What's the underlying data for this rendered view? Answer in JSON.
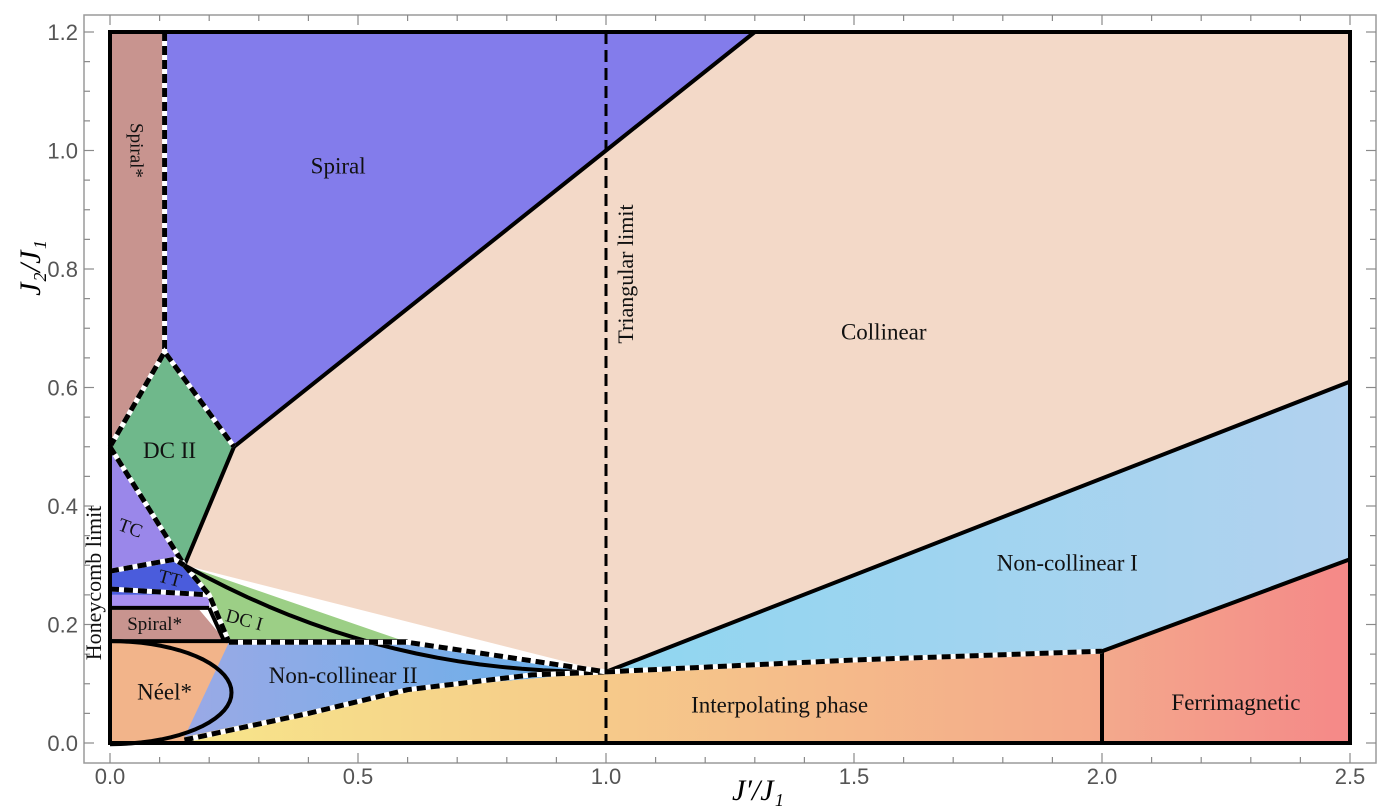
{
  "chart_data": {
    "type": "phase-diagram",
    "title": "",
    "xlabel": "J′/J₁",
    "ylabel": "J₂/J₁",
    "xlim": [
      0,
      2.5
    ],
    "ylim": [
      0,
      1.2
    ],
    "x_ticks": [
      "0.0",
      "0.5",
      "1.0",
      "1.5",
      "2.0",
      "2.5"
    ],
    "y_ticks": [
      "0.0",
      "0.2",
      "0.4",
      "0.6",
      "0.8",
      "1.0",
      "1.2"
    ],
    "limit_lines": [
      {
        "label": "Triangular limit",
        "x": 1.0
      },
      {
        "label": "Honeycomb limit",
        "x": 0.0
      }
    ],
    "regions": [
      {
        "name": "Spiral*",
        "color": "#c8948f",
        "polygon": [
          [
            0,
            1.2
          ],
          [
            0.11,
            1.2
          ],
          [
            0.11,
            0.66
          ],
          [
            0,
            0.5
          ]
        ]
      },
      {
        "name": "Spiral",
        "color": "#837ceb",
        "polygon": [
          [
            0.11,
            1.2
          ],
          [
            1.3,
            1.2
          ],
          [
            1.0,
            1.0
          ],
          [
            0.25,
            0.5
          ],
          [
            0.11,
            0.66
          ]
        ]
      },
      {
        "name": "Collinear",
        "color": "#f3d9c8",
        "polygon": [
          [
            1.3,
            1.2
          ],
          [
            2.5,
            1.2
          ],
          [
            2.5,
            0.61
          ],
          [
            1.0,
            0.12
          ],
          [
            0.15,
            0.3
          ],
          [
            0.25,
            0.5
          ],
          [
            1.0,
            1.0
          ]
        ]
      },
      {
        "name": "DC II",
        "color": "#6fb88b",
        "polygon": [
          [
            0,
            0.5
          ],
          [
            0.11,
            0.66
          ],
          [
            0.25,
            0.5
          ],
          [
            0.15,
            0.3
          ]
        ]
      },
      {
        "name": "TC",
        "color": "#9a87ea",
        "polygon": [
          [
            0,
            0.5
          ],
          [
            0.15,
            0.3
          ],
          [
            0.13,
            0.31
          ],
          [
            0,
            0.29
          ]
        ]
      },
      {
        "name": "TT",
        "color": "#4a5cdc",
        "polygon": [
          [
            0,
            0.29
          ],
          [
            0.13,
            0.31
          ],
          [
            0.15,
            0.3
          ],
          [
            0.2,
            0.25
          ],
          [
            0,
            0.25
          ]
        ]
      },
      {
        "name": "",
        "color": "#a78ff0",
        "polygon": [
          [
            0,
            0.25
          ],
          [
            0.2,
            0.25
          ],
          [
            0.2,
            0.23
          ],
          [
            0,
            0.23
          ]
        ]
      },
      {
        "name": "Spiral*",
        "color": "#c8948f",
        "polygon": [
          [
            0,
            0.225
          ],
          [
            0.18,
            0.225
          ],
          [
            0.23,
            0.175
          ],
          [
            0,
            0.175
          ]
        ]
      },
      {
        "name": "DC I",
        "color": "#9ccf86",
        "polygon": [
          [
            0.15,
            0.3
          ],
          [
            0.6,
            0.17
          ],
          [
            0.24,
            0.17
          ],
          [
            0.2,
            0.25
          ]
        ]
      },
      {
        "name": "Néel*",
        "color": "#f2b48a",
        "polygon": [
          [
            0,
            0
          ],
          [
            0,
            0.17
          ],
          [
            0.24,
            0.17
          ],
          [
            0.24,
            0
          ]
        ]
      },
      {
        "name": "Non-collinear II",
        "color": "#65aeea",
        "polygon": [
          [
            0.24,
            0.17
          ],
          [
            0.6,
            0.17
          ],
          [
            1.0,
            0.12
          ],
          [
            0.6,
            0.09
          ],
          [
            0.15,
            0.01
          ]
        ]
      },
      {
        "name": "Interpolating phase",
        "color": "#f0c27a",
        "polygon": [
          [
            0.15,
            0.01
          ],
          [
            0.6,
            0.09
          ],
          [
            1.0,
            0.12
          ],
          [
            2.0,
            0.155
          ],
          [
            2.0,
            0
          ],
          [
            0.15,
            0
          ]
        ]
      },
      {
        "name": "Non-collinear I",
        "color": "#99d4f2",
        "polygon": [
          [
            1.0,
            0.12
          ],
          [
            2.5,
            0.61
          ],
          [
            2.5,
            0.31
          ],
          [
            2.0,
            0.155
          ]
        ]
      },
      {
        "name": "Ferrimagnetic",
        "color": "#f59090",
        "polygon": [
          [
            2.0,
            0.155
          ],
          [
            2.5,
            0.31
          ],
          [
            2.5,
            0
          ],
          [
            2.0,
            0
          ]
        ]
      }
    ],
    "labels": [
      {
        "text": "Spiral",
        "x": 0.46,
        "y": 0.97
      },
      {
        "text": "Spiral*",
        "x": 0.05,
        "y": 1.0,
        "rotate": 90
      },
      {
        "text": "Collinear",
        "x": 1.56,
        "y": 0.69
      },
      {
        "text": "DC II",
        "x": 0.12,
        "y": 0.49
      },
      {
        "text": "TC",
        "x": 0.04,
        "y": 0.36,
        "rotate": 20
      },
      {
        "text": "TT",
        "x": 0.12,
        "y": 0.275,
        "rotate": 15
      },
      {
        "text": "DC I",
        "x": 0.27,
        "y": 0.205,
        "rotate": 15
      },
      {
        "text": "Spiral*",
        "x": 0.09,
        "y": 0.198
      },
      {
        "text": "Néel*",
        "x": 0.11,
        "y": 0.082
      },
      {
        "text": "Non-collinear II",
        "x": 0.47,
        "y": 0.11
      },
      {
        "text": "Non-collinear I",
        "x": 1.93,
        "y": 0.3
      },
      {
        "text": "Interpolating phase",
        "x": 1.35,
        "y": 0.06
      },
      {
        "text": "Ferrimagnetic",
        "x": 2.27,
        "y": 0.065
      }
    ],
    "grid": false
  }
}
